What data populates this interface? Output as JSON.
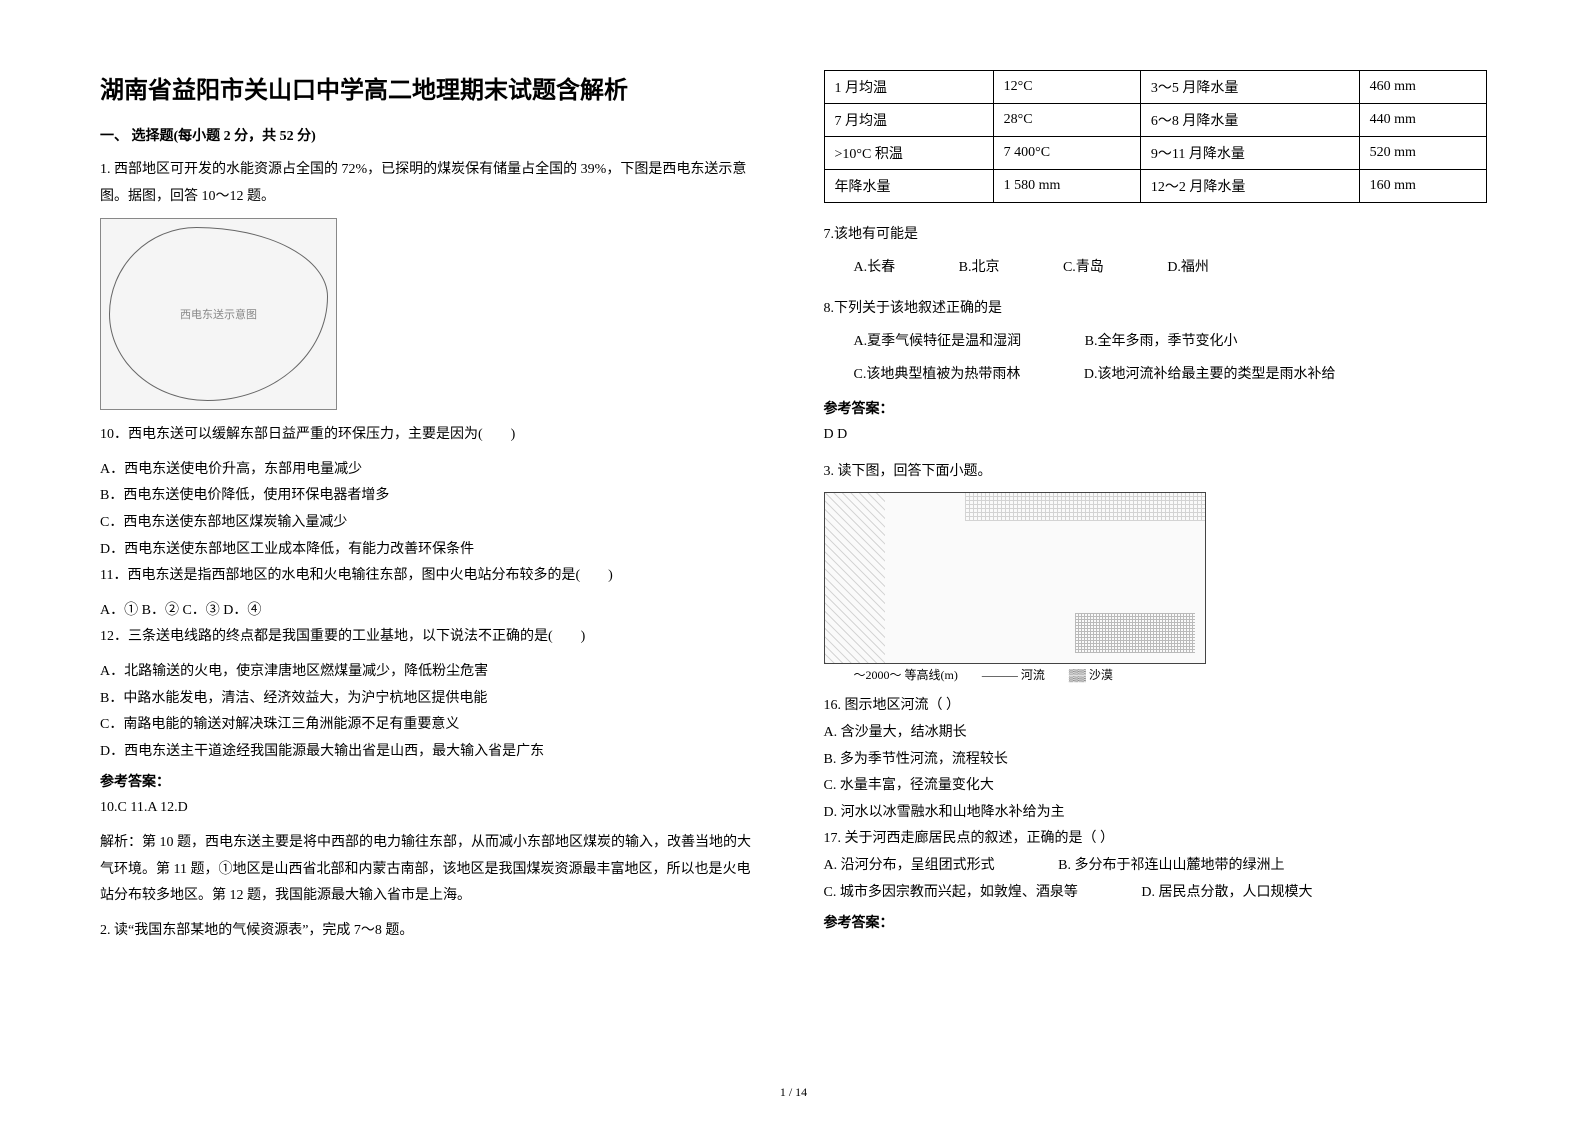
{
  "title": "湖南省益阳市关山口中学高二地理期末试题含解析",
  "section1_head": "一、 选择题(每小题 2 分，共 52 分)",
  "q1_intro": "1. 西部地区可开发的水能资源占全国的 72%，已探明的煤炭保有储量占全国的 39%，下图是西电东送示意图。据图，回答 10～12 题。",
  "map_caption": "西电东送示意图",
  "q10": "10．西电东送可以缓解东部日益严重的环保压力，主要是因为(　　)",
  "q10A": "A．西电东送使电价升高，东部用电量减少",
  "q10B": "B．西电东送使电价降低，使用环保电器者增多",
  "q10C": "C．西电东送使东部地区煤炭输入量减少",
  "q10D": "D．西电东送使东部地区工业成本降低，有能力改善环保条件",
  "q11": "11．西电东送是指西部地区的水电和火电输往东部，图中火电站分布较多的是(　　)",
  "q11opts": "A．①     B．②   C．③      D．④",
  "q12": "12．三条送电线路的终点都是我国重要的工业基地，以下说法不正确的是(　　)",
  "q12A": "A．北路输送的火电，使京津唐地区燃煤量减少，降低粉尘危害",
  "q12B": "B．中路水能发电，清洁、经济效益大，为沪宁杭地区提供电能",
  "q12C": "C．南路电能的输送对解决珠江三角洲能源不足有重要意义",
  "q12D": "D．西电东送主干道途经我国能源最大输出省是山西，最大输入省是广东",
  "ans_head": "参考答案：",
  "ans10_12": "10.C  11.A  12.D",
  "explain10_12": "解析：第 10 题，西电东送主要是将中西部的电力输往东部，从而减小东部地区煤炭的输入，改善当地的大气环境。第 11 题，①地区是山西省北部和内蒙古南部，该地区是我国煤炭资源最丰富地区，所以也是火电站分布较多地区。第 12 题，我国能源最大输入省市是上海。",
  "q2_intro": "2. 读“我国东部某地的气候资源表”，完成 7～8 题。",
  "table": {
    "rows": [
      [
        "1 月均温",
        "12°C",
        "3～5 月降水量",
        "460 mm"
      ],
      [
        "7 月均温",
        "28°C",
        "6～8 月降水量",
        "440 mm"
      ],
      [
        ">10°C 积温",
        "7 400°C",
        "9～11 月降水量",
        "520 mm"
      ],
      [
        "年降水量",
        "1 580 mm",
        "12～2 月降水量",
        "160 mm"
      ]
    ]
  },
  "q7": "7.该地有可能是",
  "q7A": "A.长春",
  "q7B": "B.北京",
  "q7C": "C.青岛",
  "q7D": "D.福州",
  "q8": "8.下列关于该地叙述正确的是",
  "q8A": "A.夏季气候特征是温和湿润",
  "q8B": "B.全年多雨，季节变化小",
  "q8C": "C.该地典型植被为热带雨林",
  "q8D": "D.该地河流补给最主要的类型是雨水补给",
  "ans7_8": "D  D",
  "q3_intro": "3. 读下图，回答下面小题。",
  "legend": "～2000～ 等高线(m)　　——— 河流　　▒▒ 沙漠",
  "q16": "16.  图示地区河流（    ）",
  "q16A": "A. 含沙量大，结冰期长",
  "q16B": "B. 多为季节性河流，流程较长",
  "q16C": "C. 水量丰富，径流量变化大",
  "q16D": "D. 河水以冰雪融水和山地降水补给为主",
  "q17": "17.  关于河西走廊居民点的叙述，正确的是（    ）",
  "q17A": "A. 沿河分布，呈组团式形式",
  "q17B": "B. 多分布于祁连山山麓地带的绿洲上",
  "q17C": "C. 城市多因宗教而兴起，如敦煌、酒泉等",
  "q17D": "D. 居民点分散，人口规模大",
  "footer": "1 / 14"
}
